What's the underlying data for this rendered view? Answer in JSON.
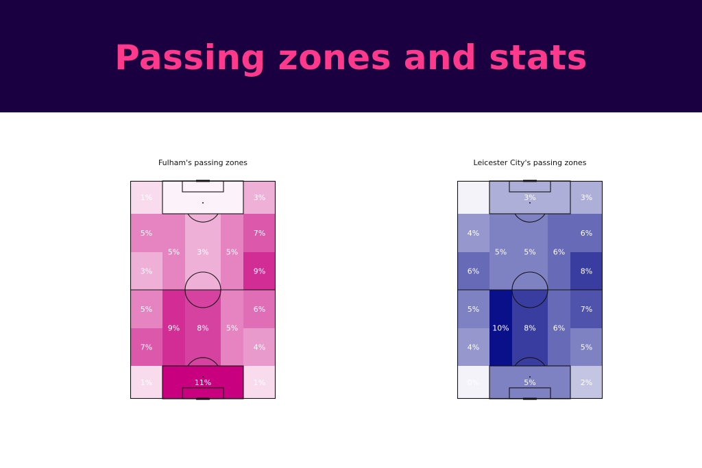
{
  "header": {
    "title": "Passing zones and stats"
  },
  "chart_data": [
    {
      "type": "heatmap",
      "title": "Fulham's passing zones",
      "base_color": "#c8007f",
      "cells": [
        {
          "zone": "top-left-corner",
          "value": 1
        },
        {
          "zone": "top-box",
          "value": null
        },
        {
          "zone": "top-right-corner",
          "value": 3
        },
        {
          "zone": "upper-left-wing",
          "value": 5
        },
        {
          "zone": "lower-left-wing",
          "value": 3
        },
        {
          "zone": "left-halfspace-defensive-half",
          "value": 5
        },
        {
          "zone": "centre-defensive-half",
          "value": 3
        },
        {
          "zone": "right-halfspace-defensive-half",
          "value": 5
        },
        {
          "zone": "upper-right-wing",
          "value": 7
        },
        {
          "zone": "lower-right-wing",
          "value": 9
        },
        {
          "zone": "left-wing-attacking-upper",
          "value": 5
        },
        {
          "zone": "left-wing-attacking-lower",
          "value": 7
        },
        {
          "zone": "left-halfspace-attacking-half",
          "value": 9
        },
        {
          "zone": "centre-attacking-half",
          "value": 8
        },
        {
          "zone": "right-halfspace-attacking-half",
          "value": 5
        },
        {
          "zone": "right-wing-attacking-upper",
          "value": 6
        },
        {
          "zone": "right-wing-attacking-lower",
          "value": 4
        },
        {
          "zone": "bottom-left-corner",
          "value": 1
        },
        {
          "zone": "bottom-box",
          "value": 11
        },
        {
          "zone": "bottom-right-corner",
          "value": 1
        }
      ]
    },
    {
      "type": "heatmap",
      "title": "Leicester City's passing zones",
      "base_color": "#0a0f8a",
      "cells": [
        {
          "zone": "top-left-corner",
          "value": null
        },
        {
          "zone": "top-box",
          "value": 3
        },
        {
          "zone": "top-right-corner",
          "value": 3
        },
        {
          "zone": "upper-left-wing",
          "value": 4
        },
        {
          "zone": "lower-left-wing",
          "value": 6
        },
        {
          "zone": "left-halfspace-defensive-half",
          "value": 5
        },
        {
          "zone": "centre-defensive-half",
          "value": 5
        },
        {
          "zone": "right-halfspace-defensive-half",
          "value": 6
        },
        {
          "zone": "upper-right-wing",
          "value": 6
        },
        {
          "zone": "lower-right-wing",
          "value": 8
        },
        {
          "zone": "left-wing-attacking-upper",
          "value": 5
        },
        {
          "zone": "left-wing-attacking-lower",
          "value": 4
        },
        {
          "zone": "left-halfspace-attacking-half",
          "value": 10
        },
        {
          "zone": "centre-attacking-half",
          "value": 8
        },
        {
          "zone": "right-halfspace-attacking-half",
          "value": 6
        },
        {
          "zone": "right-wing-attacking-upper",
          "value": 7
        },
        {
          "zone": "right-wing-attacking-lower",
          "value": 5
        },
        {
          "zone": "bottom-left-corner",
          "value": 0
        },
        {
          "zone": "bottom-box",
          "value": 5
        },
        {
          "zone": "bottom-right-corner",
          "value": 2
        }
      ]
    }
  ]
}
